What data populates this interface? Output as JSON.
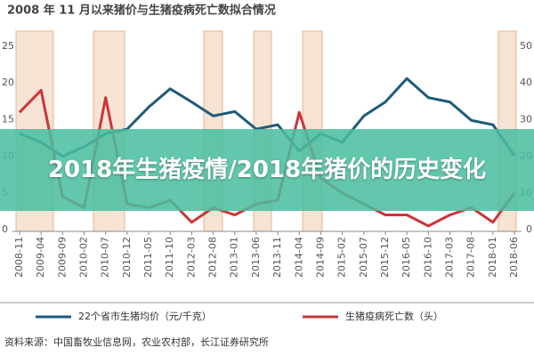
{
  "chart_data": {
    "type": "line",
    "title": "2008 年 11 月以来猪价与生猪疫病死亡数拟合情况",
    "categories": [
      "2008-11",
      "2009-04",
      "2009-09",
      "2010-02",
      "2010-07",
      "2010-12",
      "2011-05",
      "2011-10",
      "2012-03",
      "2012-08",
      "2013-01",
      "2013-06",
      "2013-11",
      "2014-04",
      "2014-09",
      "2015-02",
      "2015-07",
      "2015-12",
      "2016-05",
      "2016-10",
      "2017-03",
      "2017-08",
      "2018-01",
      "2018-06"
    ],
    "series": [
      {
        "name": "22个省市生猪均价（元/千克）",
        "color": "#1f5a7a",
        "values": [
          13.1,
          11.9,
          10,
          11.3,
          13.1,
          13.7,
          16.7,
          19.2,
          17.4,
          15.5,
          16.1,
          13.7,
          14.3,
          10.7,
          13.1,
          11.9,
          15.5,
          17.4,
          20.6,
          18,
          17.4,
          14.9,
          14.3,
          10.1
        ]
      },
      {
        "name": "生猪疫病死亡数（头）",
        "color": "#c9363a",
        "axis": "y2",
        "values": [
          32,
          38,
          9,
          6,
          36,
          7,
          6,
          8,
          2,
          6,
          4,
          7,
          8,
          32,
          14,
          10,
          7,
          4,
          4,
          1,
          4,
          6,
          2,
          10
        ]
      }
    ],
    "ylim": [
      0,
      25
    ],
    "yticks": [
      0,
      5,
      10,
      15,
      20,
      25
    ],
    "y2lim": [
      0,
      50
    ],
    "y2ticks": [
      0,
      10,
      20,
      30,
      40,
      50
    ],
    "grid": false
  },
  "banner": "2018年生猪疫情/2018年猪价的历史变化",
  "source": "资料来源：中国畜牧业信息网，农业农村部，长江证券研究所"
}
